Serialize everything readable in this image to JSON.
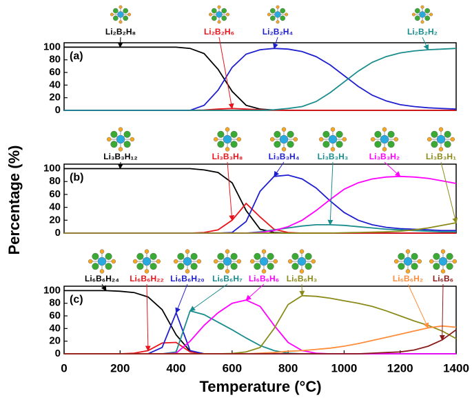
{
  "chart_data": [
    {
      "type": "line",
      "panel_label": "(a)",
      "x": [
        0,
        50,
        100,
        150,
        200,
        250,
        300,
        350,
        400,
        450,
        500,
        550,
        600,
        650,
        700,
        750,
        800,
        850,
        900,
        950,
        1000,
        1050,
        1100,
        1150,
        1200,
        1250,
        1300,
        1350,
        1400
      ],
      "xlim": [
        0,
        1400
      ],
      "ylim": [
        0,
        107
      ],
      "yticks": [
        0,
        20,
        40,
        60,
        80,
        100
      ],
      "series": [
        {
          "name": "Li₂B₂H₈",
          "color": "#000000",
          "values": [
            100,
            100,
            100,
            100,
            100,
            100,
            100,
            100,
            100,
            98,
            90,
            65,
            30,
            8,
            2,
            0.5,
            0,
            0,
            0,
            0,
            0,
            0,
            0,
            0,
            0,
            0,
            0,
            0,
            0
          ]
        },
        {
          "name": "Li₂B₂H₆",
          "color": "#e8141b",
          "values": [
            0,
            0,
            0,
            0,
            0,
            0,
            0,
            0,
            0,
            0,
            0.5,
            2,
            3,
            2,
            1,
            0.3,
            0,
            0,
            0,
            0,
            0,
            0,
            0,
            0,
            0,
            0,
            0,
            0,
            0
          ]
        },
        {
          "name": "Li₂B₂H₄",
          "color": "#1e1ecf",
          "values": [
            0,
            0,
            0,
            0,
            0,
            0,
            0,
            0,
            0,
            0,
            8,
            32,
            68,
            89,
            96,
            98,
            97,
            93,
            85,
            72,
            55,
            38,
            24,
            15,
            9,
            6,
            4,
            3,
            2
          ]
        },
        {
          "name": "Li₂B₂H₂",
          "color": "#1a8c8c",
          "values": [
            0,
            0,
            0,
            0,
            0,
            0,
            0,
            0,
            0,
            0,
            0,
            0,
            0,
            0,
            0,
            1,
            3,
            6,
            14,
            28,
            45,
            62,
            76,
            85,
            91,
            94,
            96,
            97,
            98
          ]
        }
      ]
    },
    {
      "type": "line",
      "panel_label": "(b)",
      "y_label": "Percentage (%)",
      "x": [
        0,
        50,
        100,
        150,
        200,
        250,
        300,
        350,
        400,
        450,
        500,
        550,
        600,
        650,
        700,
        750,
        800,
        850,
        900,
        950,
        1000,
        1050,
        1100,
        1150,
        1200,
        1250,
        1300,
        1350,
        1400
      ],
      "xlim": [
        0,
        1400
      ],
      "ylim": [
        0,
        107
      ],
      "yticks": [
        0,
        20,
        40,
        60,
        80,
        100
      ],
      "series": [
        {
          "name": "Li₃B₃H₁₂",
          "color": "#000000",
          "values": [
            100,
            100,
            100,
            100,
            100,
            100,
            100,
            100,
            100,
            100,
            98,
            94,
            78,
            35,
            6,
            1,
            0,
            0,
            0,
            0,
            0,
            0,
            0,
            0,
            0,
            0,
            0,
            0,
            0
          ]
        },
        {
          "name": "Li₃B₃H₈",
          "color": "#e8141b",
          "values": [
            0,
            0,
            0,
            0,
            0,
            0,
            0,
            0,
            0,
            0,
            1,
            5,
            20,
            46,
            25,
            6,
            1,
            0,
            0,
            0,
            0,
            0,
            0,
            0,
            0,
            0,
            0,
            0,
            0
          ]
        },
        {
          "name": "Li₃B₃H₄",
          "color": "#1e1ecf",
          "values": [
            0,
            0,
            0,
            0,
            0,
            0,
            0,
            0,
            0,
            0,
            0,
            0,
            1,
            18,
            65,
            88,
            90,
            84,
            70,
            50,
            32,
            20,
            13,
            9,
            7,
            6,
            5,
            4,
            4
          ]
        },
        {
          "name": "Li₃B₃H₃",
          "color": "#1a8c8c",
          "values": [
            0,
            0,
            0,
            0,
            0,
            0,
            0,
            0,
            0,
            0,
            0,
            0,
            0,
            0,
            2,
            5,
            8,
            11,
            13,
            13,
            12,
            10,
            8,
            6,
            5,
            4,
            3,
            2,
            2
          ]
        },
        {
          "name": "Li₃B₃H₂",
          "color": "#ff00ff",
          "values": [
            0,
            0,
            0,
            0,
            0,
            0,
            0,
            0,
            0,
            0,
            0,
            0,
            0,
            0,
            1,
            4,
            10,
            20,
            35,
            52,
            68,
            78,
            84,
            87,
            88,
            87,
            85,
            81,
            77
          ]
        },
        {
          "name": "Li₃B₃H₁",
          "color": "#8a8a1a",
          "values": [
            0,
            0,
            0,
            0,
            0,
            0,
            0,
            0,
            0,
            0,
            0,
            0,
            0,
            0,
            0,
            0,
            0,
            0,
            0,
            0,
            0.5,
            1,
            1.5,
            2,
            3,
            5,
            8,
            12,
            16
          ]
        }
      ]
    },
    {
      "type": "line",
      "panel_label": "(c)",
      "x_label": "Temperature (°C)",
      "x": [
        0,
        50,
        100,
        150,
        200,
        250,
        300,
        350,
        400,
        450,
        500,
        550,
        600,
        650,
        700,
        750,
        800,
        850,
        900,
        950,
        1000,
        1050,
        1100,
        1150,
        1200,
        1250,
        1300,
        1350,
        1400
      ],
      "xlim": [
        0,
        1400
      ],
      "xticks": [
        0,
        200,
        400,
        600,
        800,
        1000,
        1200,
        1400
      ],
      "ylim": [
        0,
        107
      ],
      "yticks": [
        0,
        20,
        40,
        60,
        80,
        100
      ],
      "series": [
        {
          "name": "Li₆B₆H₂₄",
          "color": "#000000",
          "values": [
            100,
            100,
            100,
            100,
            99,
            97,
            90,
            70,
            30,
            4,
            0,
            0,
            0,
            0,
            0,
            0,
            0,
            0,
            0,
            0,
            0,
            0,
            0,
            0,
            0,
            0,
            0,
            0,
            0
          ]
        },
        {
          "name": "Li₆B₆H₂₂",
          "color": "#e8141b",
          "values": [
            0,
            0,
            0,
            0,
            0,
            1,
            5,
            17,
            18,
            3,
            0,
            0,
            0,
            0,
            0,
            0,
            0,
            0,
            0,
            0,
            0,
            0,
            0,
            0,
            0,
            0,
            0,
            0,
            0
          ]
        },
        {
          "name": "Li₆B₆H₂₀",
          "color": "#1e1ecf",
          "values": [
            0,
            0,
            0,
            0,
            0,
            0,
            0,
            10,
            65,
            5,
            0,
            0,
            0,
            0,
            0,
            0,
            0,
            0,
            0,
            0,
            0,
            0,
            0,
            0,
            0,
            0,
            0,
            0,
            0
          ]
        },
        {
          "name": "Li₆B₆H₇",
          "color": "#1a8c8c",
          "values": [
            0,
            0,
            0,
            0,
            0,
            0,
            0,
            0,
            3,
            68,
            62,
            50,
            38,
            25,
            13,
            5,
            1,
            0,
            0,
            0,
            0,
            0,
            0,
            0,
            0,
            0,
            0,
            0,
            0
          ]
        },
        {
          "name": "Li₆B₆H₆",
          "color": "#ff00ff",
          "values": [
            0,
            0,
            0,
            0,
            0,
            0,
            0,
            0,
            1,
            20,
            45,
            65,
            80,
            85,
            75,
            45,
            18,
            5,
            1,
            0,
            0,
            0,
            0,
            0,
            0,
            0,
            0,
            0,
            0
          ]
        },
        {
          "name": "Li₆B₆H₃",
          "color": "#8a8a1a",
          "values": [
            0,
            0,
            0,
            0,
            0,
            0,
            0,
            0,
            0,
            0,
            0,
            0,
            0.5,
            3,
            10,
            40,
            78,
            92,
            91,
            88,
            84,
            80,
            75,
            68,
            60,
            52,
            45,
            36,
            24
          ]
        },
        {
          "name": "Li₆B₆H₂",
          "color": "#ff8c3a",
          "values": [
            0,
            0,
            0,
            0,
            0,
            0,
            0,
            0,
            0,
            0,
            0,
            0,
            0,
            0,
            1,
            2,
            4,
            5,
            7,
            9,
            12,
            16,
            21,
            26,
            31,
            36,
            41,
            44,
            42
          ]
        },
        {
          "name": "Li₆B₆",
          "color": "#8b1a1a",
          "values": [
            0,
            0,
            0,
            0,
            0,
            0,
            0,
            0,
            0,
            0,
            0,
            0,
            0,
            0,
            0,
            0,
            0,
            0,
            0,
            0,
            0,
            0,
            1,
            2,
            3,
            6,
            12,
            22,
            38
          ]
        }
      ]
    }
  ]
}
